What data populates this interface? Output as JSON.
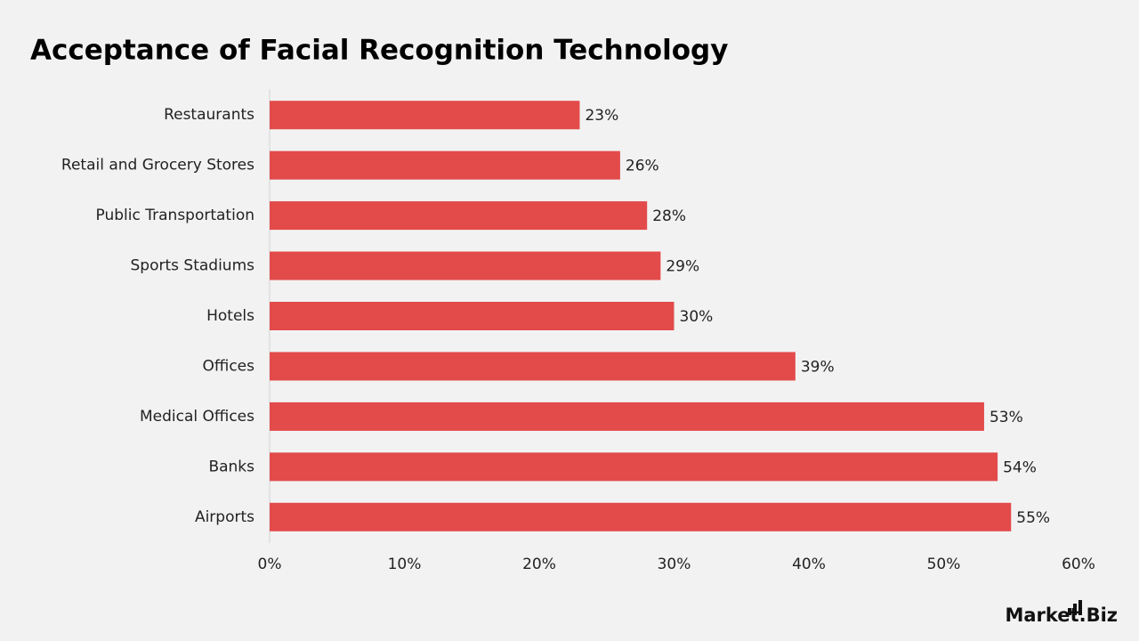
{
  "chart_data": {
    "type": "barh",
    "title": "Acceptance of Facial Recognition Technology",
    "categories": [
      "Restaurants",
      "Retail and Grocery Stores",
      "Public Transportation",
      "Sports Stadiums",
      "Hotels",
      "Offices",
      "Medical Offices",
      "Banks",
      "Airports"
    ],
    "values": [
      23,
      26,
      28,
      29,
      30,
      39,
      53,
      54,
      55
    ],
    "value_labels": [
      "23%",
      "26%",
      "28%",
      "29%",
      "30%",
      "39%",
      "53%",
      "54%",
      "55%"
    ],
    "color": "#e34a4a",
    "xlim": [
      0,
      60
    ],
    "xticks": [
      {
        "value": 0,
        "label": "0%"
      },
      {
        "value": 10,
        "label": "10%"
      },
      {
        "value": 20,
        "label": "20%"
      },
      {
        "value": 30,
        "label": "30%"
      },
      {
        "value": 40,
        "label": "40%"
      },
      {
        "value": 50,
        "label": "50%"
      },
      {
        "value": 60,
        "label": "60%"
      }
    ],
    "grid": false,
    "brand": "Market.Biz"
  }
}
